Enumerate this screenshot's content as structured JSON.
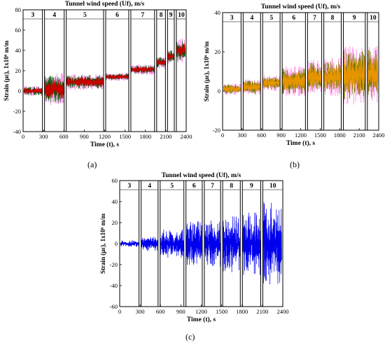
{
  "figure": {
    "captions": [
      "(a)",
      "(b)",
      "(c)"
    ]
  },
  "chart_data": [
    {
      "type": "line",
      "panel": "(a)",
      "title": "Tunnel wind speed (Uf), m/s",
      "xlabel": "Time (t), s",
      "ylabel": "Strain (με), 1x10⁶ m/m",
      "xlim": [
        0,
        2400
      ],
      "ylim": [
        -40,
        80
      ],
      "xticks": [
        0,
        300,
        600,
        900,
        1200,
        1500,
        1800,
        2100,
        2400
      ],
      "yticks": [
        -40,
        -20,
        0,
        20,
        40,
        60,
        80
      ],
      "grid": false,
      "colors": {
        "fill": "#ff99ee",
        "main": "#cc0000",
        "edge": "#005500"
      },
      "segments": [
        {
          "label": "3",
          "x": [
            0,
            300
          ],
          "mean": 0,
          "amp": 5
        },
        {
          "label": "4",
          "x": [
            300,
            620
          ],
          "mean": 2,
          "amp": 16
        },
        {
          "label": "5",
          "x": [
            620,
            1200
          ],
          "mean": 9,
          "amp": 8
        },
        {
          "label": "6",
          "x": [
            1200,
            1570
          ],
          "mean": 14,
          "amp": 4
        },
        {
          "label": "7",
          "x": [
            1570,
            1950
          ],
          "mean": 21,
          "amp": 5
        },
        {
          "label": "8",
          "x": [
            1950,
            2110
          ],
          "mean": 28,
          "amp": 6
        },
        {
          "label": "9",
          "x": [
            2110,
            2240
          ],
          "mean": 34,
          "amp": 7
        },
        {
          "label": "10",
          "x": [
            2240,
            2400
          ],
          "mean": 40,
          "amp": 12
        }
      ]
    },
    {
      "type": "line",
      "panel": "(b)",
      "title": "Tunnel wind speed (Uf), m/s",
      "xlabel": "Time (t), s",
      "ylabel": "Strain (με), 1x10⁶ m/m",
      "xlim": [
        0,
        2400
      ],
      "ylim": [
        -20,
        40
      ],
      "xticks": [
        0,
        300,
        600,
        900,
        1200,
        1500,
        1800,
        2100,
        2400
      ],
      "yticks": [
        -20,
        0,
        20,
        40
      ],
      "grid": false,
      "colors": {
        "fill": "#ffaaee",
        "main": "#e69500",
        "edge": "#777700"
      },
      "segments": [
        {
          "label": "3",
          "x": [
            0,
            300
          ],
          "mean": 1,
          "amp": 3
        },
        {
          "label": "4",
          "x": [
            300,
            600
          ],
          "mean": 2,
          "amp": 4
        },
        {
          "label": "5",
          "x": [
            600,
            900
          ],
          "mean": 4,
          "amp": 4
        },
        {
          "label": "6",
          "x": [
            900,
            1290
          ],
          "mean": 5,
          "amp": 8
        },
        {
          "label": "7",
          "x": [
            1290,
            1540
          ],
          "mean": 7,
          "amp": 9
        },
        {
          "label": "8",
          "x": [
            1540,
            1840
          ],
          "mean": 7,
          "amp": 10
        },
        {
          "label": "9",
          "x": [
            1840,
            2210
          ],
          "mean": 8,
          "amp": 15
        },
        {
          "label": "10",
          "x": [
            2210,
            2400
          ],
          "mean": 9,
          "amp": 15
        }
      ]
    },
    {
      "type": "line",
      "panel": "(c)",
      "title": "Tunnel wind speed (Uf), m/s",
      "xlabel": "Time (t), s",
      "ylabel": "Strain (με), 1x10⁶ m/m",
      "xlim": [
        0,
        2400
      ],
      "ylim": [
        -60,
        60
      ],
      "xticks": [
        0,
        300,
        600,
        900,
        1200,
        1500,
        1800,
        2100,
        2400
      ],
      "yticks": [
        -60,
        -40,
        -20,
        0,
        20,
        40,
        60
      ],
      "grid": false,
      "colors": {
        "main": "#0000ee"
      },
      "segments": [
        {
          "label": "3",
          "x": [
            0,
            300
          ],
          "mean": 0,
          "amp": 3
        },
        {
          "label": "4",
          "x": [
            300,
            580
          ],
          "mean": 0,
          "amp": 7
        },
        {
          "label": "5",
          "x": [
            580,
            960
          ],
          "mean": 0,
          "amp": 14
        },
        {
          "label": "6",
          "x": [
            960,
            1230
          ],
          "mean": 0,
          "amp": 22
        },
        {
          "label": "7",
          "x": [
            1230,
            1500
          ],
          "mean": 0,
          "amp": 22
        },
        {
          "label": "8",
          "x": [
            1500,
            1790
          ],
          "mean": 0,
          "amp": 28
        },
        {
          "label": "9",
          "x": [
            1790,
            2090
          ],
          "mean": 0,
          "amp": 30
        },
        {
          "label": "10",
          "x": [
            2090,
            2400
          ],
          "mean": 0,
          "amp": 40
        }
      ]
    }
  ]
}
